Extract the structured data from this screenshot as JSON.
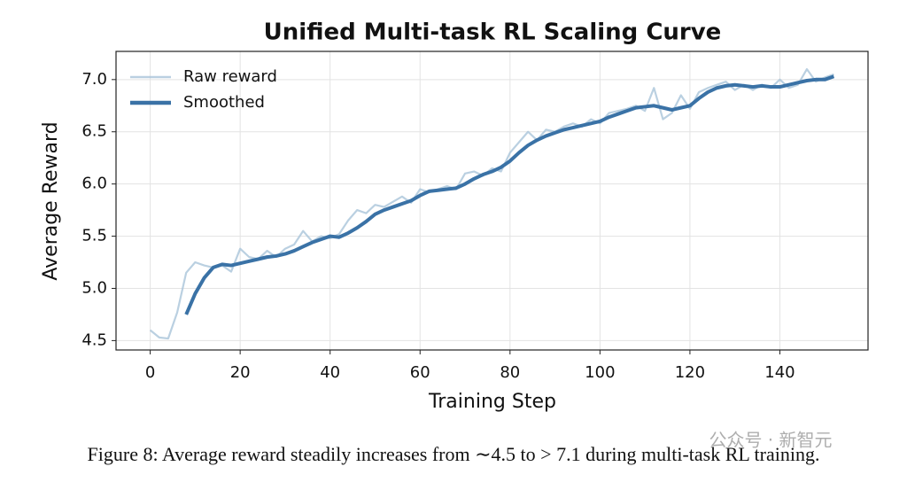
{
  "chart_data": {
    "type": "line",
    "title": "Unified Multi-task RL Scaling Curve",
    "x_label": "Training Step",
    "y_label": "Average Reward",
    "x": [
      0,
      2,
      4,
      6,
      8,
      10,
      12,
      14,
      16,
      18,
      20,
      22,
      24,
      26,
      28,
      30,
      32,
      34,
      36,
      38,
      40,
      42,
      44,
      46,
      48,
      50,
      52,
      54,
      56,
      58,
      60,
      62,
      64,
      66,
      68,
      70,
      72,
      74,
      76,
      78,
      80,
      82,
      84,
      86,
      88,
      90,
      92,
      94,
      96,
      98,
      100,
      102,
      104,
      106,
      108,
      110,
      112,
      114,
      116,
      118,
      120,
      122,
      124,
      126,
      128,
      130,
      132,
      134,
      136,
      138,
      140,
      142,
      144,
      146,
      148,
      150,
      152
    ],
    "series": [
      {
        "name": "Raw reward",
        "color": "#a9c4da",
        "values": [
          4.6,
          4.53,
          4.52,
          4.77,
          5.15,
          5.25,
          5.22,
          5.2,
          5.22,
          5.16,
          5.38,
          5.3,
          5.28,
          5.36,
          5.3,
          5.38,
          5.42,
          5.55,
          5.45,
          5.5,
          5.48,
          5.52,
          5.65,
          5.75,
          5.72,
          5.8,
          5.78,
          5.83,
          5.88,
          5.82,
          5.95,
          5.92,
          5.95,
          5.98,
          5.95,
          6.1,
          6.12,
          6.08,
          6.15,
          6.12,
          6.3,
          6.4,
          6.5,
          6.42,
          6.52,
          6.5,
          6.55,
          6.58,
          6.55,
          6.62,
          6.58,
          6.68,
          6.7,
          6.72,
          6.75,
          6.7,
          6.92,
          6.62,
          6.68,
          6.85,
          6.72,
          6.88,
          6.92,
          6.95,
          6.98,
          6.9,
          6.95,
          6.9,
          6.95,
          6.92,
          7.0,
          6.92,
          6.95,
          7.1,
          6.98,
          7.02,
          7.05
        ]
      },
      {
        "name": "Smoothed",
        "color": "#3a72a6",
        "values": [
          null,
          null,
          null,
          null,
          4.75,
          4.95,
          5.1,
          5.2,
          5.23,
          5.22,
          5.24,
          5.26,
          5.28,
          5.3,
          5.31,
          5.33,
          5.36,
          5.4,
          5.44,
          5.47,
          5.5,
          5.49,
          5.53,
          5.58,
          5.64,
          5.71,
          5.75,
          5.78,
          5.81,
          5.84,
          5.89,
          5.93,
          5.94,
          5.95,
          5.96,
          6.0,
          6.05,
          6.09,
          6.12,
          6.16,
          6.22,
          6.3,
          6.37,
          6.42,
          6.46,
          6.49,
          6.52,
          6.54,
          6.56,
          6.58,
          6.6,
          6.64,
          6.67,
          6.7,
          6.73,
          6.74,
          6.75,
          6.73,
          6.71,
          6.73,
          6.75,
          6.82,
          6.88,
          6.92,
          6.94,
          6.95,
          6.94,
          6.93,
          6.94,
          6.93,
          6.93,
          6.95,
          6.97,
          6.99,
          7.0,
          7.0,
          7.03
        ]
      }
    ],
    "xlim": [
      -7.6,
      159.6
    ],
    "xticks": [
      0,
      20,
      40,
      60,
      80,
      100,
      120,
      140
    ],
    "ylim": [
      4.41,
      7.27
    ],
    "yticks": [
      {
        "value": 4.5,
        "label": "4.5"
      },
      {
        "value": 5,
        "label": "5.0"
      },
      {
        "value": 5.5,
        "label": "5.5"
      },
      {
        "value": 6,
        "label": "6.0"
      },
      {
        "value": 6.5,
        "label": "6.5"
      },
      {
        "value": 7,
        "label": "7.0"
      }
    ],
    "grid": true,
    "legend": "upper left"
  },
  "caption": "Figure 8: Average reward steadily increases from ∼4.5 to > 7.1 during multi-task RL training.",
  "watermark": "公众号 · 新智元"
}
